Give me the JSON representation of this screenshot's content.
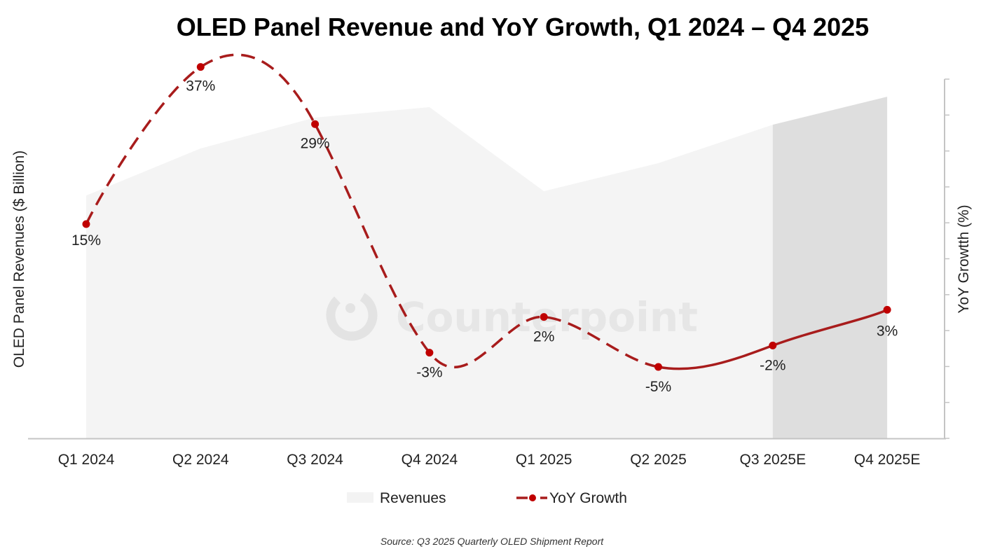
{
  "chart_data": {
    "type": "area+line",
    "title": "OLED Panel Revenue and YoY Growth, Q1 2024 – Q4 2025",
    "categories": [
      "Q1 2024",
      "Q2 2024",
      "Q3 2024",
      "Q4 2024",
      "Q1 2025",
      "Q2 2025",
      "Q3 2025E",
      "Q4 2025E"
    ],
    "y_left_label": "OLED Panel Revenues ($ Billion)",
    "y_right_label": "YoY Growtth (%)",
    "y_left_ticks_shown": false,
    "y_right_ticks_shown": false,
    "series": [
      {
        "name": "Revenues",
        "type": "area",
        "axis": "left",
        "unit": "relative index (axis unlabeled)",
        "values": [
          67.6,
          80.7,
          89.3,
          92.2,
          68.8,
          76.6,
          87.3,
          95.1
        ],
        "color": "#f4f4f4",
        "forecast_color": "#dedede",
        "forecast_from_index": 6
      },
      {
        "name": "YoY Growth",
        "type": "line",
        "axis": "right",
        "unit": "%",
        "values": [
          15,
          37,
          29,
          -3,
          2,
          -5,
          -2,
          3
        ],
        "labels": [
          "15%",
          "37%",
          "29%",
          "-3%",
          "2%",
          "-5%",
          "-2%",
          "3%"
        ],
        "color": "#a81c1c",
        "marker_color": "#c00000",
        "dashed_until_index": 5,
        "solid_from_index": 5
      }
    ],
    "y_right_range": [
      -15,
      35.3
    ],
    "y_left_range": [
      0,
      100
    ],
    "grid": false,
    "legend": {
      "position": "bottom",
      "entries": [
        "Revenues",
        "YoY Growth"
      ]
    },
    "watermark": "Counterpoint",
    "source": "Source: Q3 2025 Quarterly OLED Shipment Report"
  }
}
